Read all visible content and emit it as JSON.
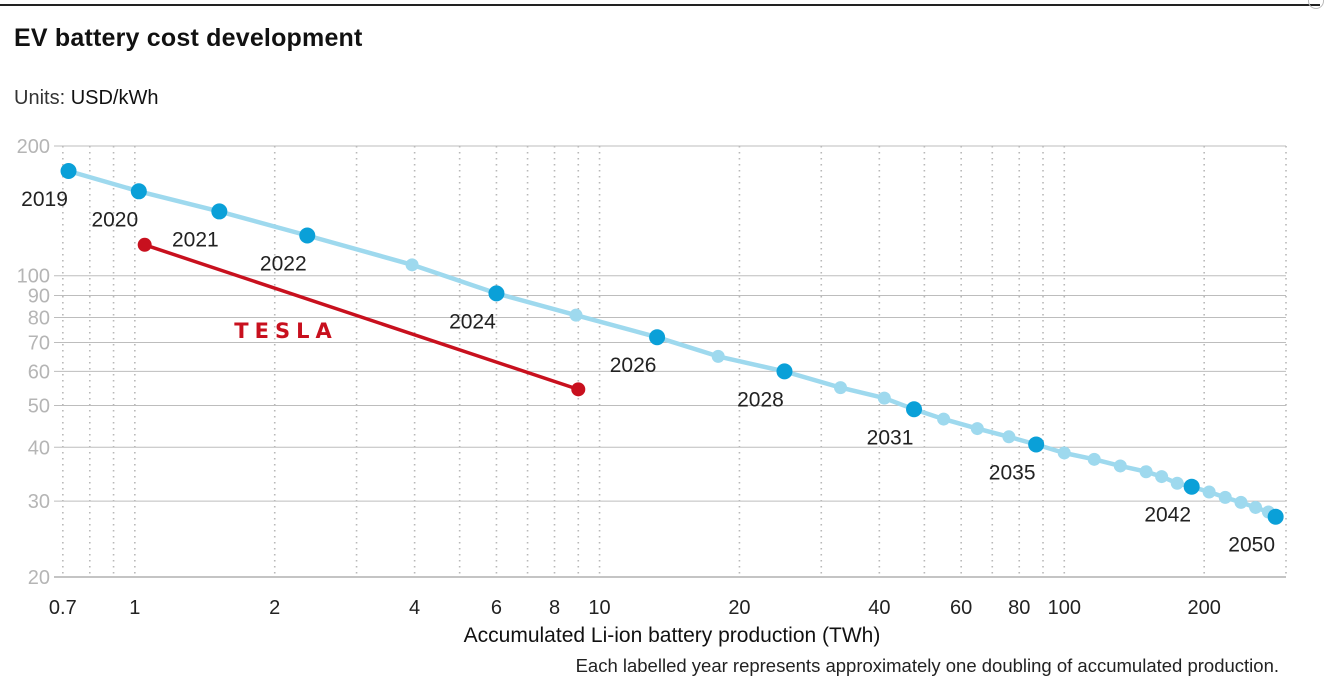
{
  "chart_data": {
    "type": "line",
    "title": "EV battery cost development",
    "units_label": "Units:",
    "units_value": "USD/kWh",
    "xlabel": "Accumulated Li-ion battery production (TWh)",
    "ylabel": "",
    "x_scale": "log",
    "y_scale": "log",
    "xlim": [
      0.67,
      300
    ],
    "ylim": [
      20,
      200
    ],
    "grid": true,
    "y_ticks": [
      {
        "value": 20,
        "label": "20"
      },
      {
        "value": 30,
        "label": "30"
      },
      {
        "value": 40,
        "label": "40"
      },
      {
        "value": 50,
        "label": "50"
      },
      {
        "value": 60,
        "label": "60"
      },
      {
        "value": 70,
        "label": "70"
      },
      {
        "value": 80,
        "label": "80"
      },
      {
        "value": 90,
        "label": "90"
      },
      {
        "value": 100,
        "label": "100"
      },
      {
        "value": 200,
        "label": "200"
      }
    ],
    "x_ticks": [
      {
        "value": 0.7,
        "label": "0.7"
      },
      {
        "value": 1,
        "label": "1"
      },
      {
        "value": 2,
        "label": "2"
      },
      {
        "value": 4,
        "label": "4"
      },
      {
        "value": 6,
        "label": "6"
      },
      {
        "value": 8,
        "label": "8"
      },
      {
        "value": 10,
        "label": "10"
      },
      {
        "value": 20,
        "label": "20"
      },
      {
        "value": 40,
        "label": "40"
      },
      {
        "value": 60,
        "label": "60"
      },
      {
        "value": 80,
        "label": "80"
      },
      {
        "value": 100,
        "label": "100"
      },
      {
        "value": 200,
        "label": "200"
      }
    ],
    "x_gridlines": [
      0.7,
      0.8,
      0.9,
      1,
      2,
      3,
      4,
      5,
      6,
      7,
      8,
      9,
      10,
      20,
      30,
      40,
      50,
      60,
      70,
      80,
      90,
      100,
      200,
      300
    ],
    "series": [
      {
        "key": "industry",
        "color": "#9ed9ee",
        "marker_color_labelled": "#0aa0d8",
        "marker_color": "#9ed9ee",
        "points": [
          {
            "x": 0.72,
            "y": 175,
            "label": "2019"
          },
          {
            "x": 1.02,
            "y": 157,
            "label": "2020"
          },
          {
            "x": 1.52,
            "y": 141,
            "label": "2021"
          },
          {
            "x": 2.35,
            "y": 124,
            "label": "2022"
          },
          {
            "x": 3.95,
            "y": 106
          },
          {
            "x": 6.0,
            "y": 91,
            "label": "2024"
          },
          {
            "x": 8.9,
            "y": 81
          },
          {
            "x": 13.3,
            "y": 72,
            "label": "2026"
          },
          {
            "x": 18.0,
            "y": 65
          },
          {
            "x": 25.0,
            "y": 60,
            "label": "2028"
          },
          {
            "x": 33.0,
            "y": 55
          },
          {
            "x": 41.0,
            "y": 52
          },
          {
            "x": 47.5,
            "y": 49,
            "label": "2031"
          },
          {
            "x": 55.0,
            "y": 46.5
          },
          {
            "x": 65.0,
            "y": 44.2
          },
          {
            "x": 76.0,
            "y": 42.3
          },
          {
            "x": 87.0,
            "y": 40.6,
            "label": "2035"
          },
          {
            "x": 100.0,
            "y": 38.8
          },
          {
            "x": 116.0,
            "y": 37.5
          },
          {
            "x": 132.0,
            "y": 36.2
          },
          {
            "x": 150.0,
            "y": 35.1
          },
          {
            "x": 162.0,
            "y": 34.2
          },
          {
            "x": 175.0,
            "y": 33.0
          },
          {
            "x": 188.0,
            "y": 32.4,
            "label": "2042"
          },
          {
            "x": 205.0,
            "y": 31.5
          },
          {
            "x": 222.0,
            "y": 30.6
          },
          {
            "x": 240.0,
            "y": 29.8
          },
          {
            "x": 258.0,
            "y": 29.0
          },
          {
            "x": 275.0,
            "y": 28.3
          },
          {
            "x": 285.0,
            "y": 27.6,
            "label": "2050"
          }
        ]
      },
      {
        "key": "tesla",
        "color": "#c8101e",
        "logo_text": "TESLA",
        "points": [
          {
            "x": 1.05,
            "y": 118
          },
          {
            "x": 9.0,
            "y": 54.5
          }
        ]
      }
    ],
    "footnote": "Each labelled year represents approximately one doubling of accumulated production."
  }
}
